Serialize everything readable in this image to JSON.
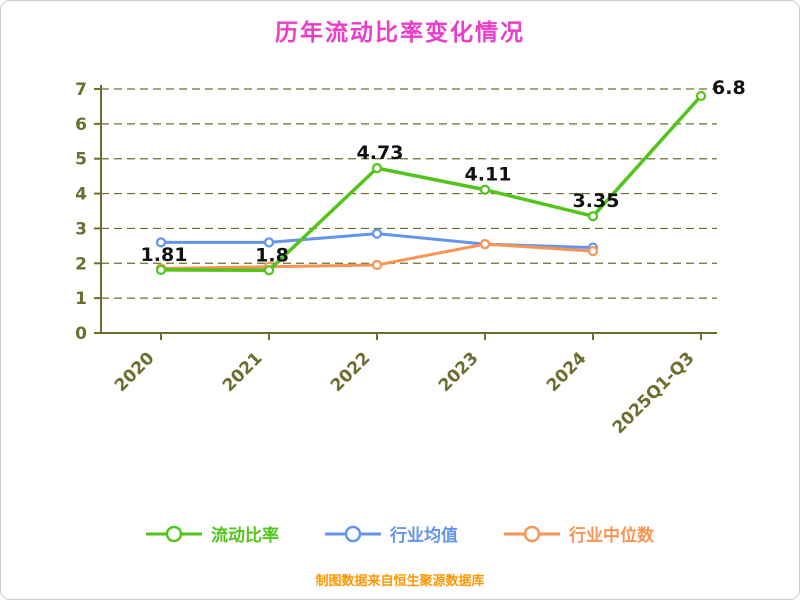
{
  "chart_data": {
    "type": "line",
    "title": "历年流动比率变化情况",
    "title_color": "#ec3cc8",
    "source_note": "制图数据来自恒生聚源数据库",
    "source_note_color": "#ff9800",
    "axis_color": "#6d6d30",
    "categories": [
      "2020",
      "2021",
      "2022",
      "2023",
      "2024",
      "2025Q1-Q3"
    ],
    "series": [
      {
        "name": "流动比率",
        "color": "#52c41a",
        "values": [
          1.81,
          1.8,
          4.73,
          4.11,
          3.35,
          6.8
        ],
        "point_labels": [
          "1.81",
          "1.8",
          "4.73",
          "4.11",
          "3.35",
          "6.8"
        ]
      },
      {
        "name": "行业均值",
        "color": "#6495ed",
        "values": [
          2.6,
          2.6,
          2.85,
          2.55,
          2.45,
          null
        ]
      },
      {
        "name": "行业中位数",
        "color": "#fa9455",
        "values": [
          1.85,
          1.9,
          1.95,
          2.55,
          2.35,
          null
        ]
      }
    ],
    "ylim": [
      0,
      7
    ],
    "y_ticks": [
      0,
      1,
      2,
      3,
      4,
      5,
      6,
      7
    ],
    "xlabel": "",
    "ylabel": "",
    "grid": "horizontal-dashed",
    "legend_position": "bottom",
    "point_label_color": "#111111",
    "marker_style": "hollow-circle"
  }
}
